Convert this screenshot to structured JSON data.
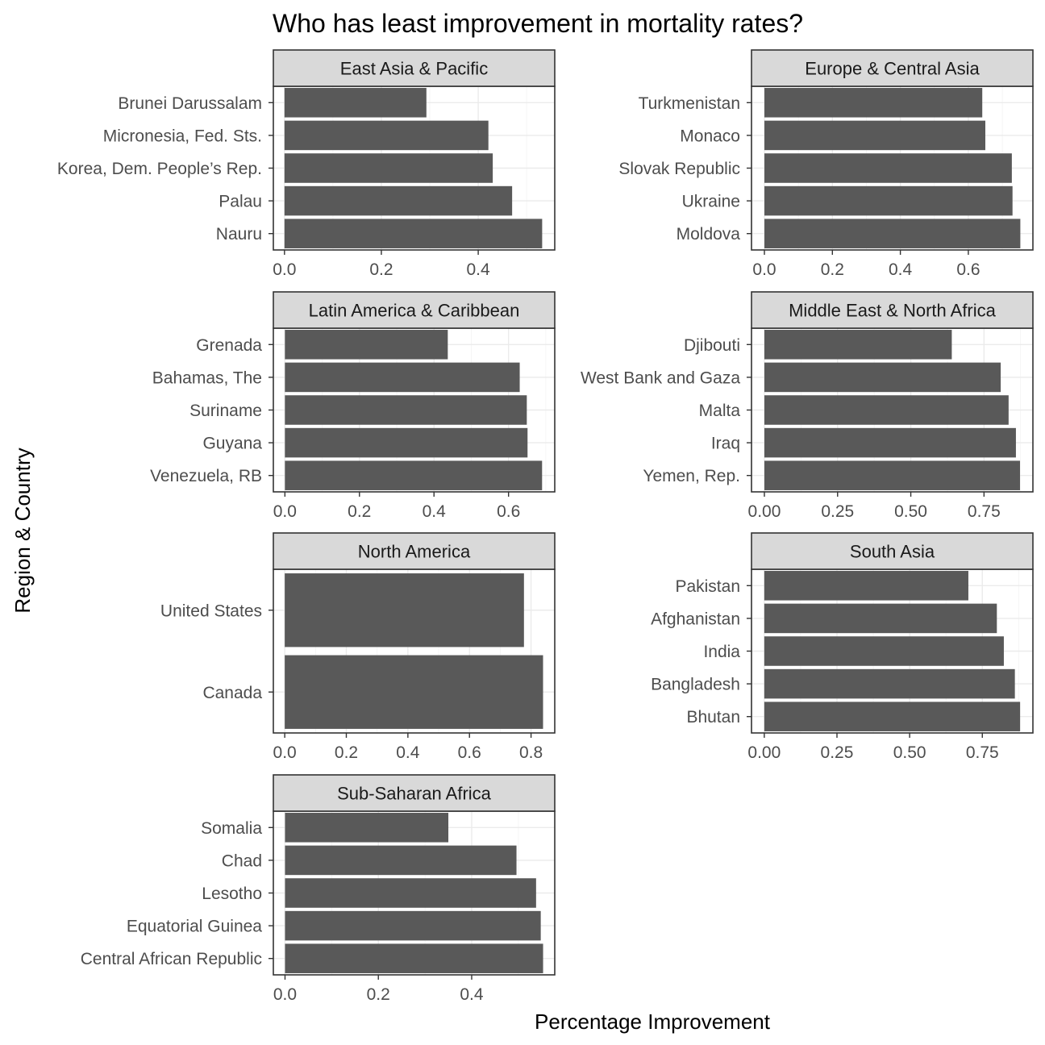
{
  "chart_data": {
    "type": "bar",
    "orientation": "horizontal",
    "title": "Who has least improvement in mortality rates?",
    "xlabel": "Percentage Improvement",
    "ylabel": "Region & Country",
    "grid": true,
    "bar_color": "#595959",
    "panels": [
      {
        "name": "East Asia & Pacific",
        "categories": [
          "Brunei Darussalam",
          "Micronesia, Fed. Sts.",
          "Korea, Dem. People’s Rep.",
          "Palau",
          "Nauru"
        ],
        "values": [
          0.293,
          0.421,
          0.43,
          0.47,
          0.532
        ],
        "xlim": [
          -0.023,
          0.558
        ],
        "ticks": [
          0.0,
          0.2,
          0.4
        ],
        "tick_labels": [
          "0.0",
          "0.2",
          "0.4"
        ]
      },
      {
        "name": "Europe & Central Asia",
        "categories": [
          "Turkmenistan",
          "Monaco",
          "Slovak Republic",
          "Ukraine",
          "Moldova"
        ],
        "values": [
          0.641,
          0.65,
          0.728,
          0.73,
          0.753
        ],
        "xlim": [
          -0.038,
          0.79
        ],
        "ticks": [
          0.0,
          0.2,
          0.4,
          0.6
        ],
        "tick_labels": [
          "0.0",
          "0.2",
          "0.4",
          "0.6"
        ]
      },
      {
        "name": "Latin America & Caribbean",
        "categories": [
          "Grenada",
          "Bahamas, The",
          "Suriname",
          "Guyana",
          "Venezuela, RB"
        ],
        "values": [
          0.437,
          0.63,
          0.649,
          0.651,
          0.69
        ],
        "xlim": [
          -0.031,
          0.724
        ],
        "ticks": [
          0.0,
          0.2,
          0.4,
          0.6
        ],
        "tick_labels": [
          "0.0",
          "0.2",
          "0.4",
          "0.6"
        ]
      },
      {
        "name": "Middle East & North Africa",
        "categories": [
          "Djibouti",
          "West Bank and Gaza",
          "Malta",
          "Iraq",
          "Yemen, Rep."
        ],
        "values": [
          0.64,
          0.807,
          0.834,
          0.859,
          0.873
        ],
        "xlim": [
          -0.044,
          0.917
        ],
        "ticks": [
          0.0,
          0.25,
          0.5,
          0.75
        ],
        "tick_labels": [
          "0.00",
          "0.25",
          "0.50",
          "0.75"
        ]
      },
      {
        "name": "North America",
        "categories": [
          "United States",
          "Canada"
        ],
        "values": [
          0.777,
          0.839
        ],
        "xlim": [
          -0.037,
          0.877
        ],
        "ticks": [
          0.0,
          0.2,
          0.4,
          0.6,
          0.8
        ],
        "tick_labels": [
          "0.0",
          "0.2",
          "0.4",
          "0.6",
          "0.8"
        ]
      },
      {
        "name": "South Asia",
        "categories": [
          "Pakistan",
          "Afghanistan",
          "India",
          "Bangladesh",
          "Bhutan"
        ],
        "values": [
          0.702,
          0.8,
          0.824,
          0.862,
          0.88
        ],
        "xlim": [
          -0.044,
          0.924
        ],
        "ticks": [
          0.0,
          0.25,
          0.5,
          0.75
        ],
        "tick_labels": [
          "0.00",
          "0.25",
          "0.50",
          "0.75"
        ]
      },
      {
        "name": "Sub-Saharan Africa",
        "categories": [
          "Somalia",
          "Chad",
          "Lesotho",
          "Equatorial Guinea",
          "Central African Republic"
        ],
        "values": [
          0.35,
          0.496,
          0.538,
          0.548,
          0.553
        ],
        "xlim": [
          -0.025,
          0.578
        ],
        "ticks": [
          0.0,
          0.2,
          0.4
        ],
        "tick_labels": [
          "0.0",
          "0.2",
          "0.4"
        ]
      }
    ]
  }
}
